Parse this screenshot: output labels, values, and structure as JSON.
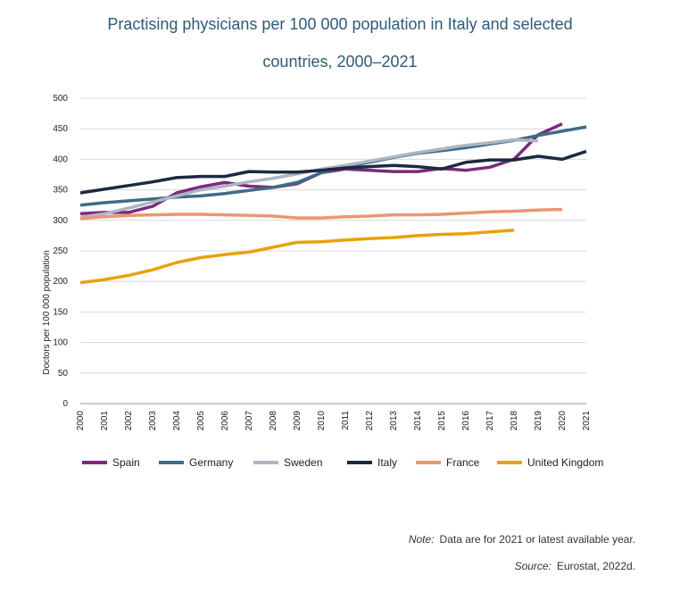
{
  "title_line1": "Practising physicians per 100 000 population in Italy and selected",
  "title_line2": "countries, 2000–2021",
  "note_label": "Note:",
  "note_text": "Data are for 2021 or latest available year.",
  "source_label": "Source:",
  "source_text": "Eurostat, 2022d.",
  "chart_data": {
    "type": "line",
    "ylabel": "Doctors per 100 000 population",
    "xlabel": "",
    "ylim": [
      0,
      500
    ],
    "yticks": [
      0,
      50,
      100,
      150,
      200,
      250,
      300,
      350,
      400,
      450,
      500
    ],
    "grid": true,
    "legend": "bottom",
    "categories": [
      "2000",
      "2001",
      "2002",
      "2003",
      "2004",
      "2005",
      "2006",
      "2007",
      "2008",
      "2009",
      "2010",
      "2011",
      "2012",
      "2013",
      "2014",
      "2015",
      "2016",
      "2017",
      "2018",
      "2019",
      "2020",
      "2021"
    ],
    "series": [
      {
        "name": "Spain",
        "color": "#7b2a7e",
        "values": [
          311,
          313,
          313,
          323,
          345,
          355,
          362,
          356,
          354,
          360,
          378,
          384,
          382,
          380,
          380,
          385,
          382,
          387,
          400,
          440,
          458,
          null
        ]
      },
      {
        "name": "Germany",
        "color": "#3f6b86",
        "values": [
          325,
          329,
          332,
          335,
          338,
          340,
          344,
          349,
          354,
          362,
          378,
          388,
          395,
          403,
          410,
          414,
          419,
          425,
          431,
          439,
          446,
          453
        ]
      },
      {
        "name": "Sweden",
        "color": "#aeb6c3",
        "values": [
          305,
          311,
          320,
          330,
          340,
          350,
          356,
          363,
          369,
          376,
          384,
          390,
          397,
          404,
          411,
          417,
          423,
          427,
          432,
          430,
          null,
          null
        ]
      },
      {
        "name": "Italy",
        "color": "#1b2a42",
        "values": [
          345,
          351,
          357,
          363,
          370,
          372,
          372,
          380,
          379,
          379,
          382,
          386,
          388,
          390,
          388,
          384,
          395,
          399,
          399,
          405,
          400,
          413
        ]
      },
      {
        "name": "France",
        "color": "#eb9670",
        "values": [
          303,
          306,
          308,
          309,
          310,
          310,
          309,
          308,
          307,
          304,
          304,
          306,
          307,
          309,
          309,
          310,
          312,
          314,
          315,
          317,
          318,
          null
        ]
      },
      {
        "name": "United Kingdom",
        "color": "#e8a20a",
        "values": [
          198,
          203,
          210,
          219,
          231,
          239,
          244,
          248,
          256,
          264,
          265,
          268,
          270,
          272,
          275,
          277,
          278,
          281,
          284,
          null,
          null,
          null
        ]
      }
    ]
  }
}
